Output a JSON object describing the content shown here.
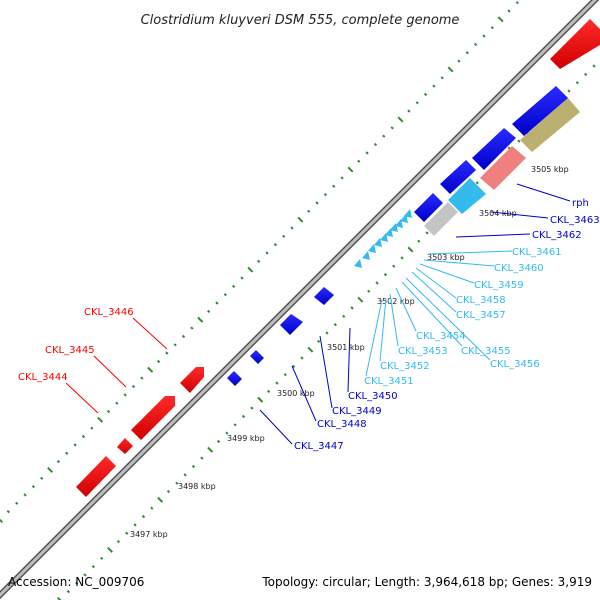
{
  "title": "Clostridium kluyveri DSM 555, complete genome",
  "accession": "Accession: NC_009706",
  "topology": "Topology: circular; Length: 3,964,618 bp; Genes: 3,919",
  "colors": {
    "backbone": "#888888",
    "tick": "#2e8b2e",
    "reverse_gene": "#ff0000",
    "forward_gene": "#0000ee",
    "trna_gene": "#33bbee",
    "rrna_salmon": "#f08080",
    "rrna_olive": "#bcb070",
    "misc_gray": "#c4c4c4"
  },
  "kbp_ticks": [
    "3497 kbp",
    "3498 kbp",
    "3499 kbp",
    "3500 kbp",
    "3501 kbp",
    "3502 kbp",
    "3503 kbp",
    "3504 kbp",
    "3505 kbp"
  ],
  "reverse_labels": [
    "CKL_3444",
    "CKL_3445",
    "CKL_3446"
  ],
  "forward_labels_dark": [
    "CKL_3447",
    "CKL_3448",
    "CKL_3449",
    "CKL_3450",
    "CKL_3462",
    "CKL_3463",
    "rph"
  ],
  "forward_labels_light": [
    "CKL_3451",
    "CKL_3452",
    "CKL_3453",
    "CKL_3454",
    "CKL_3455",
    "CKL_3456",
    "CKL_3457",
    "CKL_3458",
    "CKL_3459",
    "CKL_3460",
    "CKL_3461"
  ]
}
